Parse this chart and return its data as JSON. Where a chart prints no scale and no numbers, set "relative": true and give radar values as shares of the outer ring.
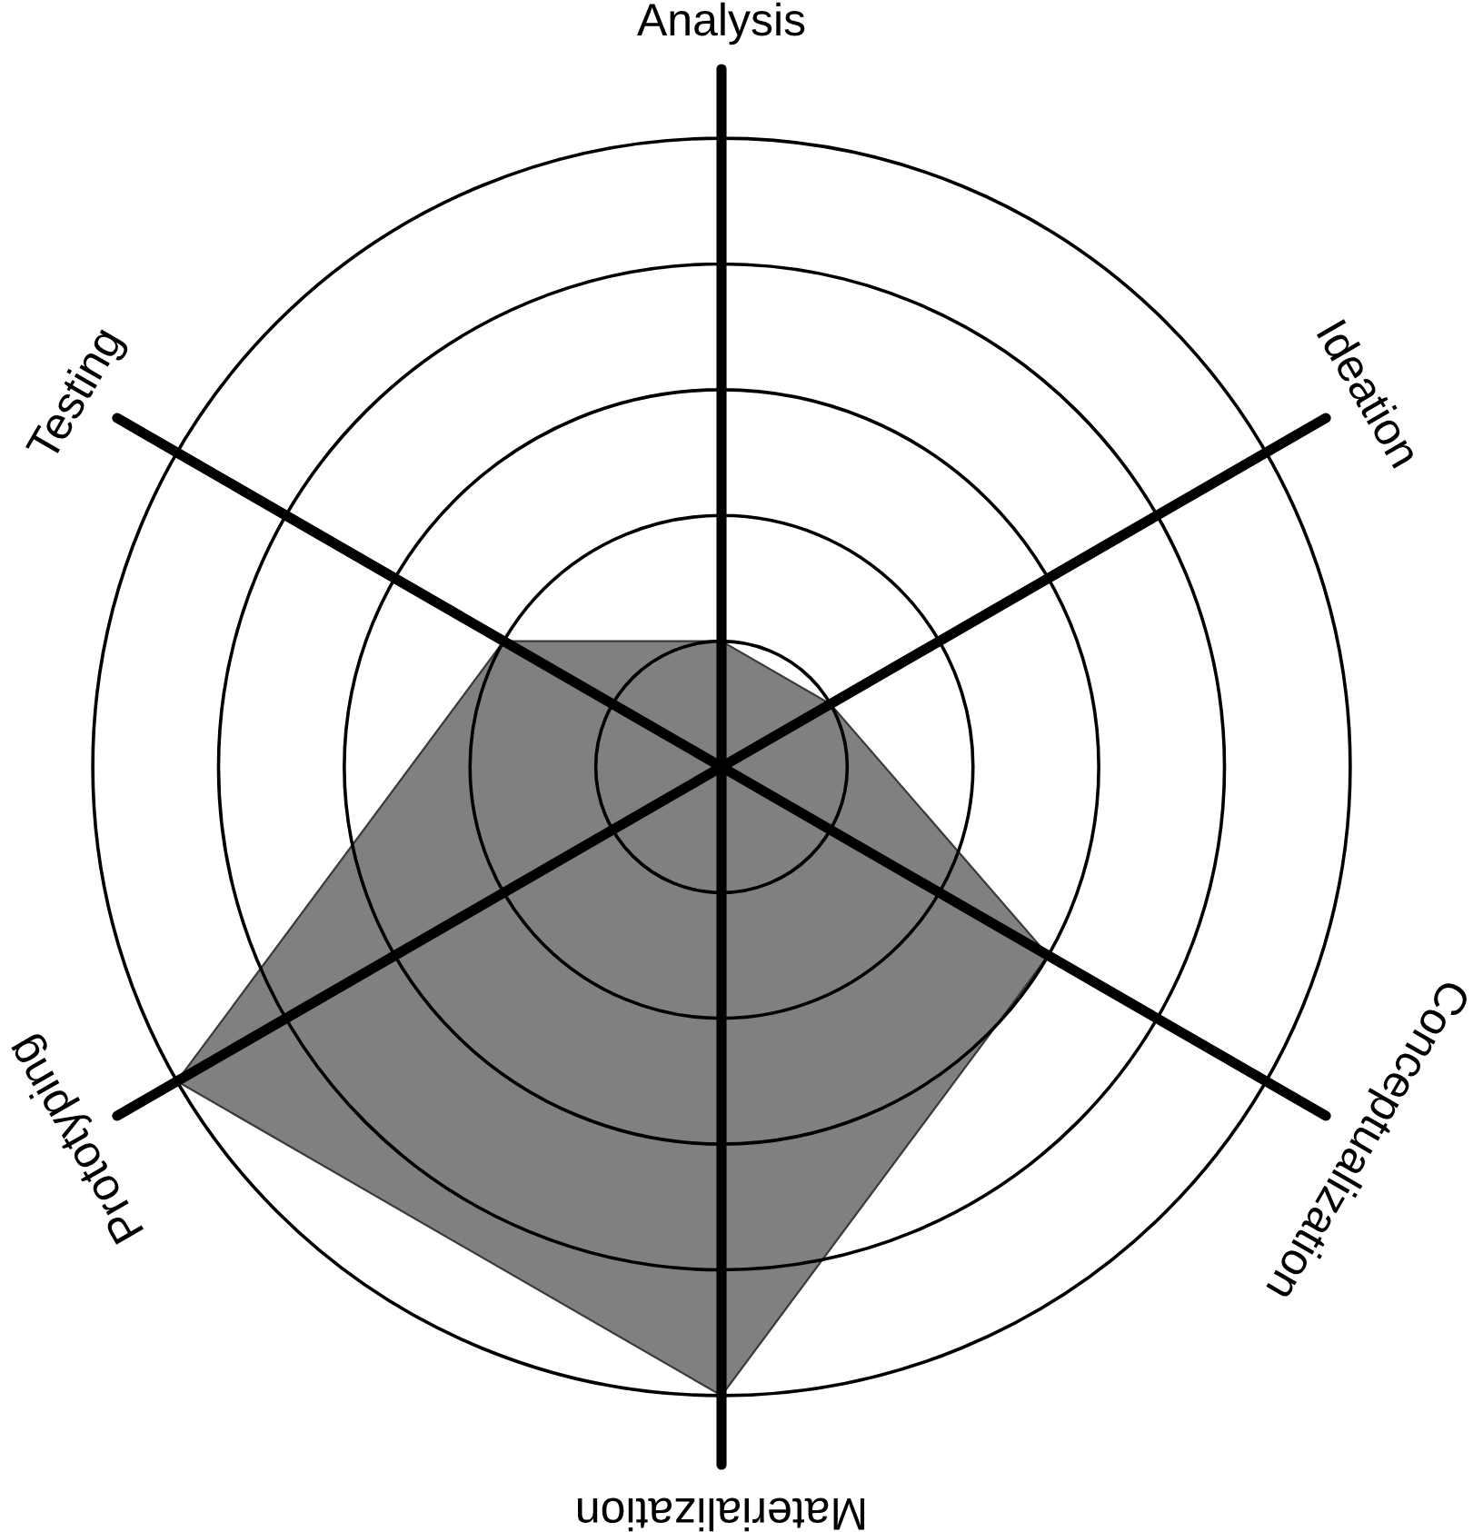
{
  "chart_data": {
    "type": "radar",
    "relative": true,
    "categories": [
      "Analysis",
      "Ideation",
      "Conceptualization",
      "Materialization",
      "Prototyping",
      "Testing"
    ],
    "series": [
      {
        "color": "#808080",
        "values": [
          0.2,
          0.2,
          0.6,
          1.0,
          1.0,
          0.4
        ]
      }
    ],
    "grid": true
  }
}
